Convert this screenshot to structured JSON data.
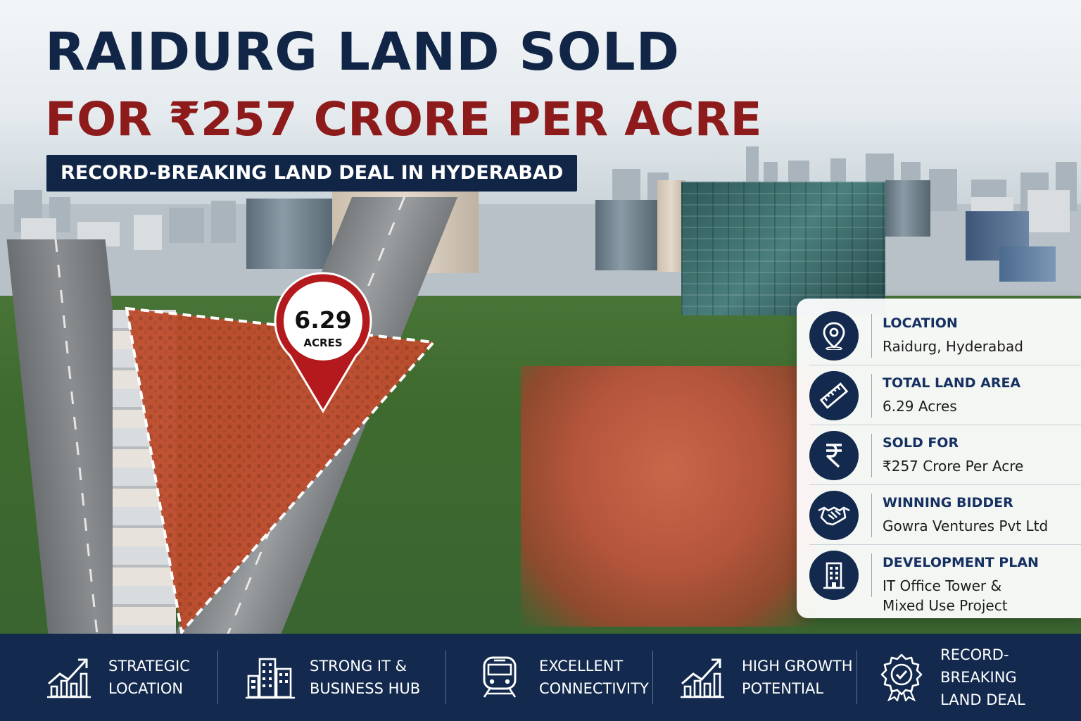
{
  "headline": {
    "line1": "RAIDURG LAND SOLD",
    "line2": "FOR ₹257 CRORE PER ACRE",
    "subtitle": "RECORD-BREAKING LAND DEAL IN HYDERABAD"
  },
  "map_pin": {
    "value": "6.29",
    "unit": "ACRES",
    "color": "#b3191d"
  },
  "info_panel": {
    "items": [
      {
        "icon": "location-pin-icon",
        "label": "LOCATION",
        "value": "Raidurg, Hyderabad"
      },
      {
        "icon": "ruler-icon",
        "label": "TOTAL LAND AREA",
        "value": "6.29 Acres"
      },
      {
        "icon": "rupee-icon",
        "label": "SOLD FOR",
        "value": "₹257 Crore Per Acre"
      },
      {
        "icon": "handshake-icon",
        "label": "WINNING BIDDER",
        "value": "Gowra Ventures Pvt Ltd"
      },
      {
        "icon": "office-building-icon",
        "label": "DEVELOPMENT PLAN",
        "value_line1": "IT Office Tower &",
        "value_line2": "Mixed Use Project"
      }
    ]
  },
  "features": [
    {
      "icon": "growth-chart-icon",
      "line1": "STRATEGIC",
      "line2": "LOCATION"
    },
    {
      "icon": "city-buildings-icon",
      "line1": "STRONG IT &",
      "line2": "BUSINESS HUB"
    },
    {
      "icon": "train-icon",
      "line1": "EXCELLENT",
      "line2": "CONNECTIVITY"
    },
    {
      "icon": "growth-chart-icon",
      "line1": "HIGH GROWTH",
      "line2": "POTENTIAL"
    },
    {
      "icon": "award-badge-icon",
      "line1": "RECORD-BREAKING",
      "line2": "LAND DEAL"
    }
  ],
  "colors": {
    "navy": "#132a4e",
    "title_navy": "#112547",
    "title_red": "#8e1b1b",
    "plot_overlay": "#c0392b"
  }
}
